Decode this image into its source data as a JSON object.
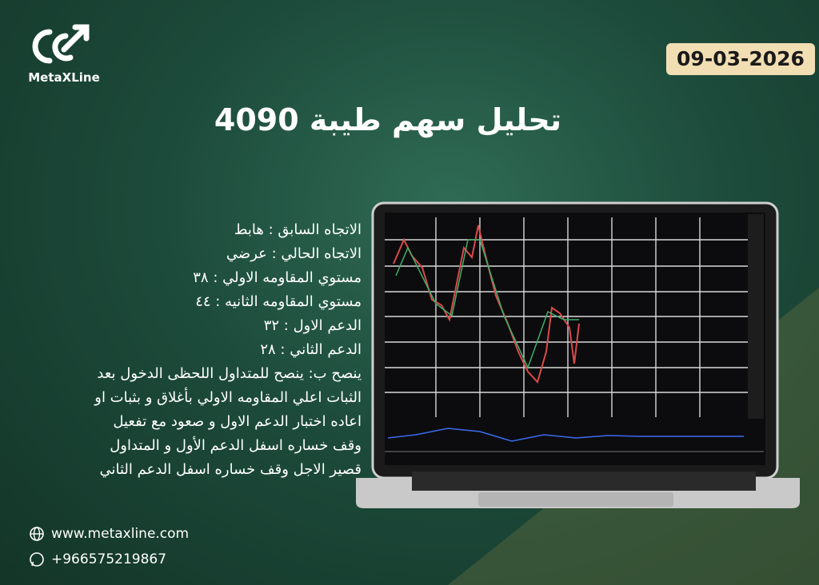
{
  "brand": "MetaXLine",
  "date": "09-03-2026",
  "title": "تحليل سهم طيبة 4090",
  "lines": [
    "الاتجاه السابق : هابط",
    "الاتجاه الحالي : عرضي",
    "مستوي المقاومه الاولي : ٣٨",
    "مستوي المقاومه الثانيه : ٤٤",
    "الدعم الاول : ٣٢",
    "الدعم الثاني : ٢٨",
    "ينصح ب: ينصح للمتداول اللحظى الدخول بعد",
    "الثبات اعلي المقاومه الاولي بأغلاق و بثبات او",
    "اعاده اختبار الدعم الاول و صعود مع تفعيل",
    "وقف خساره اسفل الدعم الأول و المتداول",
    "قصير الاجل وقف خساره اسفل الدعم الثاني"
  ],
  "contact": {
    "website": "www.metaxline.com",
    "phone": "+966575219867"
  }
}
